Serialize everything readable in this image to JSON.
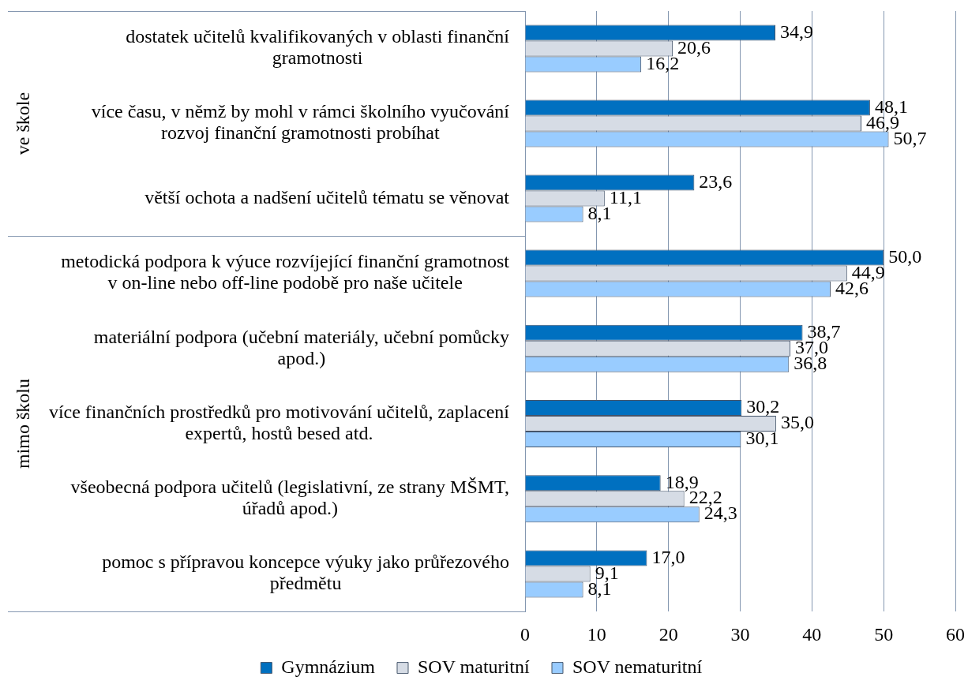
{
  "chart_data": [
    {
      "type": "bar",
      "orientation": "horizontal",
      "ylabel": "ve škole",
      "categories": [
        "dostatek učitelů kvalifikovaných v oblasti finanční gramotnosti",
        "více času, v němž by mohl v rámci školního vyučování rozvoj finanční gramotnosti probíhat",
        "větší ochota a nadšení učitelů tématu se věnovat"
      ],
      "series": [
        {
          "color": "#0070c0",
          "values": [
            34.9,
            48.1,
            23.6
          ],
          "value_labels": [
            "34,9",
            "48,1",
            "23,6"
          ]
        },
        {
          "color": "#d6dce5",
          "values": [
            20.6,
            46.9,
            11.1
          ],
          "value_labels": [
            "20,6",
            "46,9",
            "11,1"
          ]
        },
        {
          "color": "#99ccff",
          "values": [
            16.2,
            50.7,
            8.1
          ],
          "value_labels": [
            "16,2",
            "50,7",
            "8,1"
          ]
        }
      ],
      "xlim": [
        0,
        60
      ],
      "xticks": [
        0,
        10,
        20,
        30,
        40,
        50,
        60
      ],
      "grid": "x",
      "tick_labels": "y"
    },
    {
      "type": "bar",
      "orientation": "horizontal",
      "ylabel": "mimo školu",
      "categories": [
        "metodická podpora k výuce rozvíjející finanční gramotnost v on-line nebo off-line podobě pro naše učitele",
        "materiální podpora (učební materiály, učební pomůcky apod.)",
        "více finančních prostředků pro motivování učitelů, zaplacení expertů, hostů besed atd.",
        "všeobecná podpora učitelů (legislativní, ze strany MŠMT, úřadů apod.)",
        "pomoc s přípravou koncepce výuky jako průřezového předmětu"
      ],
      "series": [
        {
          "name": "Gymnázium",
          "color": "#0070c0",
          "values": [
            50.0,
            38.7,
            30.2,
            18.9,
            17.0
          ],
          "value_labels": [
            "50,0",
            "38,7",
            "30,2",
            "18,9",
            "17,0"
          ]
        },
        {
          "name": "SOV maturitní",
          "color": "#d6dce5",
          "values": [
            44.9,
            37.0,
            35.0,
            22.2,
            9.1
          ],
          "value_labels": [
            "44,9",
            "37,0",
            "35,0",
            "22,2",
            "9,1"
          ]
        },
        {
          "name": "SOV nematuritní",
          "color": "#99ccff",
          "values": [
            42.6,
            36.8,
            30.1,
            24.3,
            8.1
          ],
          "value_labels": [
            "42,6",
            "36,8",
            "30,1",
            "24,3",
            "8,1"
          ]
        }
      ],
      "xlim": [
        0,
        60
      ],
      "xticks": [
        0,
        10,
        20,
        30,
        40,
        50,
        60
      ],
      "grid": "x",
      "legend": "bottom"
    }
  ]
}
